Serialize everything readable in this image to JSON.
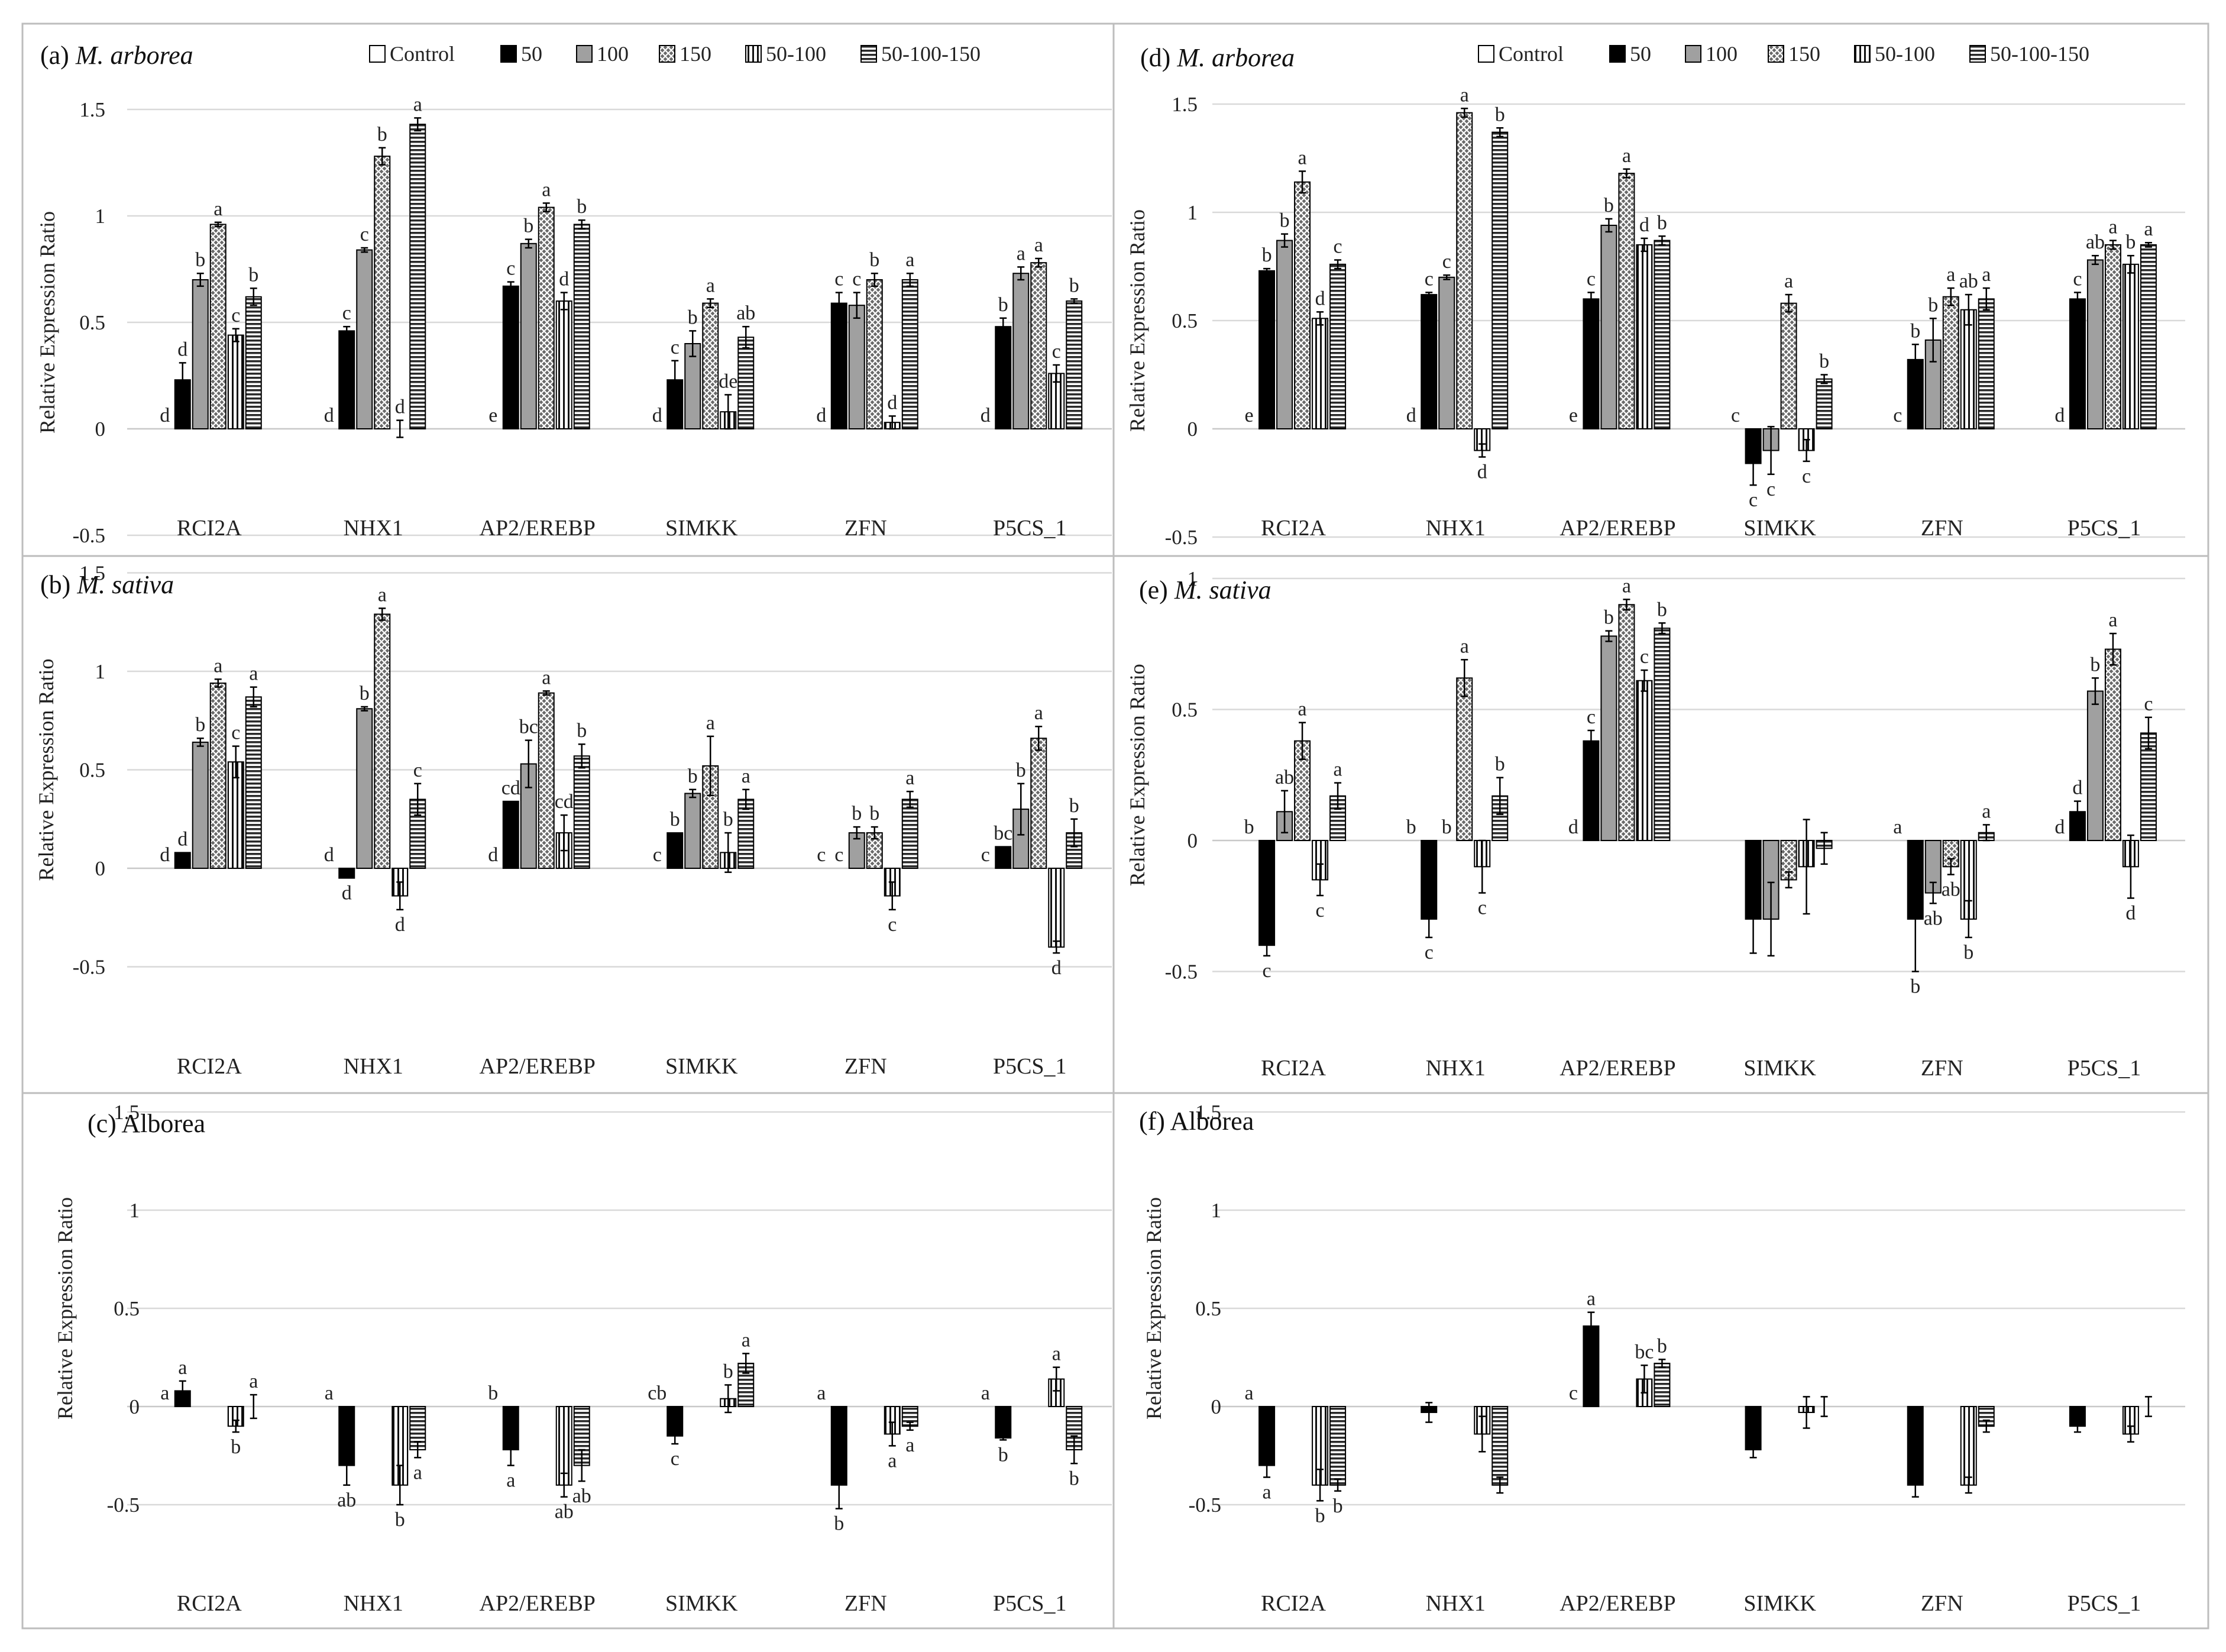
{
  "figure": {
    "legend_labels": [
      "Control",
      "50",
      "100",
      "150",
      "50-100",
      "50-100-150"
    ],
    "series_colors": {
      "Control": "#ffffff",
      "50": "#000000",
      "100": "#a0a0a0",
      "150": "#5a5a5a",
      "50-100": "#ffffff",
      "50-100-150": "#6a6a6a"
    }
  },
  "chart_data": [
    {
      "id": "a",
      "type": "bar",
      "title_prefix": "(a)",
      "title_name": "M. arborea",
      "title_italic": true,
      "ylabel": "Relative Expression Ratio",
      "ylim": [
        -0.5,
        1.5
      ],
      "yticks": [
        -0.5,
        0,
        0.5,
        1,
        1.5
      ],
      "ytick_labels": [
        "-0.5",
        "0",
        "0.5",
        "1",
        "1.5"
      ],
      "categories": [
        "RCI2A",
        "NHX1",
        "AP2/EREBP",
        "SIMKK",
        "ZFN",
        "P5CS_1"
      ],
      "series": [
        {
          "name": "Control",
          "values": [
            0,
            0,
            0,
            0,
            0,
            0
          ],
          "errors": [
            0,
            0,
            0,
            0,
            0,
            0
          ],
          "letters": [
            "d",
            "d",
            "e",
            "d",
            "d",
            "d"
          ]
        },
        {
          "name": "50",
          "values": [
            0.23,
            0.46,
            0.67,
            0.23,
            0.59,
            0.48
          ],
          "errors": [
            0.08,
            0.02,
            0.02,
            0.09,
            0.05,
            0.04
          ],
          "letters": [
            "d",
            "c",
            "c",
            "c",
            "c",
            "b"
          ]
        },
        {
          "name": "100",
          "values": [
            0.7,
            0.84,
            0.87,
            0.4,
            0.58,
            0.73
          ],
          "errors": [
            0.03,
            0.01,
            0.02,
            0.06,
            0.06,
            0.03
          ],
          "letters": [
            "b",
            "c",
            "b",
            "b",
            "c",
            "a"
          ]
        },
        {
          "name": "150",
          "values": [
            0.96,
            1.28,
            1.04,
            0.59,
            0.7,
            0.78
          ],
          "errors": [
            0.01,
            0.04,
            0.02,
            0.02,
            0.03,
            0.02
          ],
          "letters": [
            "a",
            "b",
            "a",
            "a",
            "b",
            "a"
          ]
        },
        {
          "name": "50-100",
          "values": [
            0.44,
            0,
            0.6,
            0.08,
            0.03,
            0.26
          ],
          "errors": [
            0.03,
            0.04,
            0.04,
            0.08,
            0.03,
            0.04
          ],
          "letters": [
            "c",
            "d",
            "d",
            "de",
            "d",
            "c"
          ]
        },
        {
          "name": "50-100-150",
          "values": [
            0.62,
            1.43,
            0.96,
            0.43,
            0.7,
            0.6
          ],
          "errors": [
            0.04,
            0.03,
            0.02,
            0.05,
            0.03,
            0.01
          ],
          "letters": [
            "b",
            "a",
            "b",
            "ab",
            "a",
            "b"
          ]
        }
      ]
    },
    {
      "id": "b",
      "type": "bar",
      "title_prefix": "(b)",
      "title_name": "M. sativa",
      "title_italic": true,
      "ylabel": "Relative Expression Ratio",
      "ylim": [
        -0.5,
        1.5
      ],
      "yticks": [
        -0.5,
        0,
        0.5,
        1,
        1.5
      ],
      "ytick_labels": [
        "-0.5",
        "0",
        "0.5",
        "1",
        "1.5"
      ],
      "categories": [
        "RCI2A",
        "NHX1",
        "AP2/EREBP",
        "SIMKK",
        "ZFN",
        "P5CS_1"
      ],
      "series": [
        {
          "name": "Control",
          "values": [
            0,
            0,
            0,
            0,
            0,
            0
          ],
          "errors": [
            0,
            0,
            0,
            0,
            0,
            0
          ],
          "letters": [
            "d",
            "d",
            "d",
            "c",
            "c",
            "c"
          ]
        },
        {
          "name": "50",
          "values": [
            0.08,
            -0.05,
            0.34,
            0.18,
            0,
            0.11
          ],
          "errors": [
            0,
            0,
            0,
            0,
            0,
            0
          ],
          "letters": [
            "d",
            "d",
            "cd",
            "b",
            "c",
            "bc"
          ]
        },
        {
          "name": "100",
          "values": [
            0.64,
            0.81,
            0.53,
            0.38,
            0.18,
            0.3
          ],
          "errors": [
            0.02,
            0.01,
            0.12,
            0.02,
            0.03,
            0.13
          ],
          "letters": [
            "b",
            "b",
            "bc",
            "b",
            "b",
            "b"
          ]
        },
        {
          "name": "150",
          "values": [
            0.94,
            1.29,
            0.89,
            0.52,
            0.18,
            0.66
          ],
          "errors": [
            0.02,
            0.03,
            0.01,
            0.15,
            0.03,
            0.06
          ],
          "letters": [
            "a",
            "a",
            "a",
            "a",
            "b",
            "a"
          ]
        },
        {
          "name": "50-100",
          "values": [
            0.54,
            -0.14,
            0.18,
            0.08,
            -0.14,
            -0.4
          ],
          "errors": [
            0.08,
            0.07,
            0.09,
            0.1,
            0.07,
            0.03
          ],
          "letters": [
            "c",
            "d",
            "cd",
            "b",
            "c",
            "d"
          ]
        },
        {
          "name": "50-100-150",
          "values": [
            0.87,
            0.35,
            0.57,
            0.35,
            0.35,
            0.18
          ],
          "errors": [
            0.05,
            0.08,
            0.06,
            0.05,
            0.04,
            0.07
          ],
          "letters": [
            "a",
            "c",
            "b",
            "a",
            "a",
            "b"
          ]
        }
      ]
    },
    {
      "id": "c",
      "type": "bar",
      "title_prefix": "(c)",
      "title_name": "Alborea",
      "title_italic": false,
      "ylabel": "Relative Expression Ratio",
      "ylim": [
        -0.5,
        1.5
      ],
      "yticks": [
        -0.5,
        0,
        0.5,
        1,
        1.5
      ],
      "ytick_labels": [
        "-0.5",
        "0",
        "0.5",
        "1",
        "1.5"
      ],
      "categories": [
        "RCI2A",
        "NHX1",
        "AP2/EREBP",
        "SIMKK",
        "ZFN",
        "P5CS_1"
      ],
      "series": [
        {
          "name": "Control",
          "values": [
            0,
            0,
            0,
            0,
            0,
            0
          ],
          "errors": [
            0,
            0,
            0,
            0,
            0,
            0
          ],
          "letters": [
            "a",
            "a",
            "b",
            "cb",
            "a",
            "a"
          ]
        },
        {
          "name": "50",
          "values": [
            0.08,
            -0.3,
            -0.22,
            -0.15,
            -0.4,
            -0.16
          ],
          "errors": [
            0.05,
            0.1,
            0.08,
            0.04,
            0.12,
            0.01
          ],
          "letters": [
            "a",
            "ab",
            "a",
            "c",
            "b",
            "b"
          ]
        },
        {
          "name": "50-100",
          "values": [
            -0.1,
            -0.4,
            -0.4,
            0.04,
            -0.14,
            0.14
          ],
          "errors": [
            0.03,
            0.1,
            0.06,
            0.07,
            0.06,
            0.06
          ],
          "letters": [
            "b",
            "b",
            "ab",
            "b",
            "a",
            "a"
          ]
        },
        {
          "name": "50-100-150",
          "values": [
            0,
            -0.22,
            -0.3,
            0.22,
            -0.1,
            -0.22
          ],
          "errors": [
            0.06,
            0.04,
            0.08,
            0.05,
            0.02,
            0.07
          ],
          "letters": [
            "a",
            "a",
            "ab",
            "a",
            "a",
            "b"
          ]
        }
      ]
    },
    {
      "id": "d",
      "type": "bar",
      "title_prefix": "(d)",
      "title_name": "M. arborea",
      "title_italic": true,
      "ylabel": "Relative Expression Ratio",
      "ylim": [
        -0.5,
        1.5
      ],
      "yticks": [
        -0.5,
        0,
        0.5,
        1,
        1.5
      ],
      "ytick_labels": [
        "-0.5",
        "0",
        "0.5",
        "1",
        "1.5"
      ],
      "categories": [
        "RCI2A",
        "NHX1",
        "AP2/EREBP",
        "SIMKK",
        "ZFN",
        "P5CS_1"
      ],
      "series": [
        {
          "name": "Control",
          "values": [
            0,
            0,
            0,
            0,
            0,
            0
          ],
          "errors": [
            0,
            0,
            0,
            0,
            0,
            0
          ],
          "letters": [
            "e",
            "d",
            "e",
            "c",
            "c",
            "d"
          ]
        },
        {
          "name": "50",
          "values": [
            0.73,
            0.62,
            0.6,
            -0.16,
            0.32,
            0.6
          ],
          "errors": [
            0.01,
            0.01,
            0.03,
            0.1,
            0.07,
            0.03
          ],
          "letters": [
            "b",
            "c",
            "c",
            "c",
            "b",
            "c"
          ]
        },
        {
          "name": "100",
          "values": [
            0.87,
            0.7,
            0.94,
            -0.1,
            0.41,
            0.78
          ],
          "errors": [
            0.03,
            0.01,
            0.03,
            0.11,
            0.1,
            0.02
          ],
          "letters": [
            "b",
            "c",
            "b",
            "c",
            "b",
            "ab"
          ]
        },
        {
          "name": "150",
          "values": [
            1.14,
            1.46,
            1.18,
            0.58,
            0.61,
            0.85
          ],
          "errors": [
            0.05,
            0.02,
            0.02,
            0.04,
            0.04,
            0.02
          ],
          "letters": [
            "a",
            "a",
            "a",
            "a",
            "a",
            "a"
          ]
        },
        {
          "name": "50-100",
          "values": [
            0.51,
            -0.1,
            0.85,
            -0.1,
            0.55,
            0.76
          ],
          "errors": [
            0.03,
            0.03,
            0.03,
            0.05,
            0.07,
            0.04
          ],
          "letters": [
            "d",
            "d",
            "d",
            "c",
            "ab",
            "b"
          ]
        },
        {
          "name": "50-100-150",
          "values": [
            0.76,
            1.37,
            0.87,
            0.23,
            0.6,
            0.85
          ],
          "errors": [
            0.02,
            0.02,
            0.02,
            0.02,
            0.05,
            0.01
          ],
          "letters": [
            "c",
            "b",
            "b",
            "b",
            "a",
            "a"
          ]
        }
      ]
    },
    {
      "id": "e",
      "type": "bar",
      "title_prefix": "(e)",
      "title_name": "M. sativa",
      "title_italic": true,
      "ylabel": "Relative Expression Ratio",
      "ylim": [
        -0.5,
        1
      ],
      "yticks": [
        -0.5,
        0,
        0.5,
        1
      ],
      "ytick_labels": [
        "-0.5",
        "0",
        "0.5",
        "1"
      ],
      "categories": [
        "RCI2A",
        "NHX1",
        "AP2/EREBP",
        "SIMKK",
        "ZFN",
        "P5CS_1"
      ],
      "series": [
        {
          "name": "Control",
          "values": [
            0,
            0,
            0,
            0,
            0,
            0
          ],
          "errors": [
            0,
            0,
            0,
            0,
            0,
            0
          ],
          "letters": [
            "b",
            "b",
            "d",
            "",
            "a",
            "d"
          ]
        },
        {
          "name": "50",
          "values": [
            -0.4,
            -0.3,
            0.38,
            -0.3,
            -0.3,
            0.11
          ],
          "errors": [
            0.04,
            0.07,
            0.04,
            0.13,
            0.2,
            0.04
          ],
          "letters": [
            "c",
            "c",
            "c",
            "",
            "b",
            "d"
          ]
        },
        {
          "name": "100",
          "values": [
            0.11,
            0,
            0.78,
            -0.3,
            -0.2,
            0.57
          ],
          "errors": [
            0.08,
            0,
            0.02,
            0.14,
            0.04,
            0.05
          ],
          "letters": [
            "ab",
            "b",
            "b",
            "",
            "ab",
            "b"
          ]
        },
        {
          "name": "150",
          "values": [
            0.38,
            0.62,
            0.9,
            -0.15,
            -0.1,
            0.73
          ],
          "errors": [
            0.07,
            0.07,
            0.02,
            0.03,
            0.03,
            0.06
          ],
          "letters": [
            "a",
            "a",
            "a",
            "",
            "ab",
            "a"
          ]
        },
        {
          "name": "50-100",
          "values": [
            -0.15,
            -0.1,
            0.61,
            -0.1,
            -0.3,
            -0.1
          ],
          "errors": [
            0.06,
            0.1,
            0.04,
            0.18,
            0.07,
            0.12
          ],
          "letters": [
            "c",
            "c",
            "c",
            "",
            "b",
            "d"
          ]
        },
        {
          "name": "50-100-150",
          "values": [
            0.17,
            0.17,
            0.81,
            -0.03,
            0.03,
            0.41
          ],
          "errors": [
            0.05,
            0.07,
            0.02,
            0.06,
            0.03,
            0.06
          ],
          "letters": [
            "a",
            "b",
            "b",
            "",
            "a",
            "c"
          ]
        }
      ]
    },
    {
      "id": "f",
      "type": "bar",
      "title_prefix": "(f)",
      "title_name": "Alborea",
      "title_italic": false,
      "ylabel": "Relative Expression Ratio",
      "ylim": [
        -0.5,
        1.5
      ],
      "yticks": [
        -0.5,
        0,
        0.5,
        1,
        1.5
      ],
      "ytick_labels": [
        "-0.5",
        "0",
        "0.5",
        "1",
        "1.5"
      ],
      "categories": [
        "RCI2A",
        "NHX1",
        "AP2/EREBP",
        "SIMKK",
        "ZFN",
        "P5CS_1"
      ],
      "series": [
        {
          "name": "Control",
          "values": [
            0,
            0,
            0,
            0,
            0,
            0
          ],
          "errors": [
            0,
            0,
            0,
            0,
            0,
            0
          ],
          "letters": [
            "a",
            "",
            "c",
            "",
            "",
            ""
          ]
        },
        {
          "name": "50",
          "values": [
            -0.3,
            -0.03,
            0.41,
            -0.22,
            -0.4,
            -0.1
          ],
          "errors": [
            0.06,
            0.05,
            0.07,
            0.04,
            0.06,
            0.03
          ],
          "letters": [
            "a",
            "",
            "a",
            "",
            "",
            ""
          ]
        },
        {
          "name": "50-100",
          "values": [
            -0.4,
            -0.14,
            0.14,
            -0.03,
            -0.4,
            -0.14
          ],
          "errors": [
            0.08,
            0.09,
            0.07,
            0.08,
            0.04,
            0.04
          ],
          "letters": [
            "b",
            "",
            "bc",
            "",
            "",
            ""
          ]
        },
        {
          "name": "50-100-150",
          "values": [
            -0.4,
            -0.4,
            0.22,
            0,
            -0.1,
            0
          ],
          "errors": [
            0.03,
            0.04,
            0.02,
            0.05,
            0.03,
            0.05
          ],
          "letters": [
            "b",
            "",
            "b",
            "",
            "",
            ""
          ]
        }
      ]
    }
  ]
}
